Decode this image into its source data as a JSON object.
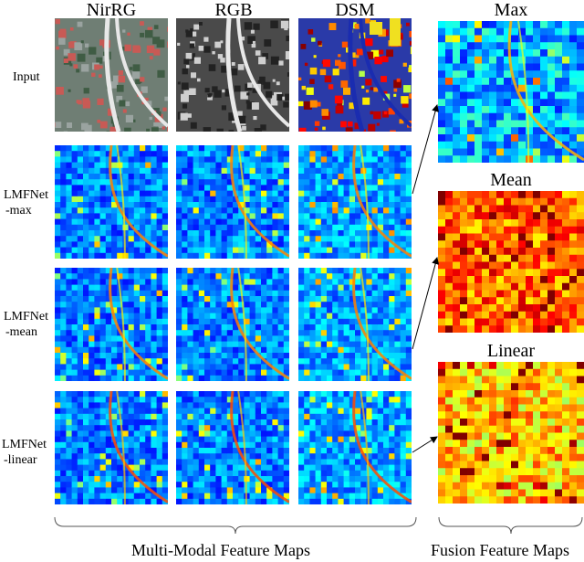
{
  "column_headers": [
    "NirRG",
    "RGB",
    "DSM"
  ],
  "row_labels": [
    {
      "line1": "Input",
      "line2": ""
    },
    {
      "line1": "LMFNet",
      "line2": "-max"
    },
    {
      "line1": "LMFNet",
      "line2": "-mean"
    },
    {
      "line1": "LMFNet",
      "line2": "-linear"
    }
  ],
  "fusion_titles": [
    "Max",
    "Mean",
    "Linear"
  ],
  "captions": {
    "multi_modal": "Multi-Modal Feature Maps",
    "fusion": "Fusion Feature Maps"
  },
  "colormap": "jet",
  "colors": {
    "jet_low": "#1a2cb0",
    "jet_high": "#c81414",
    "nirrg_red": "#c85a55",
    "nirrg_veg": "#4a6f4a"
  }
}
